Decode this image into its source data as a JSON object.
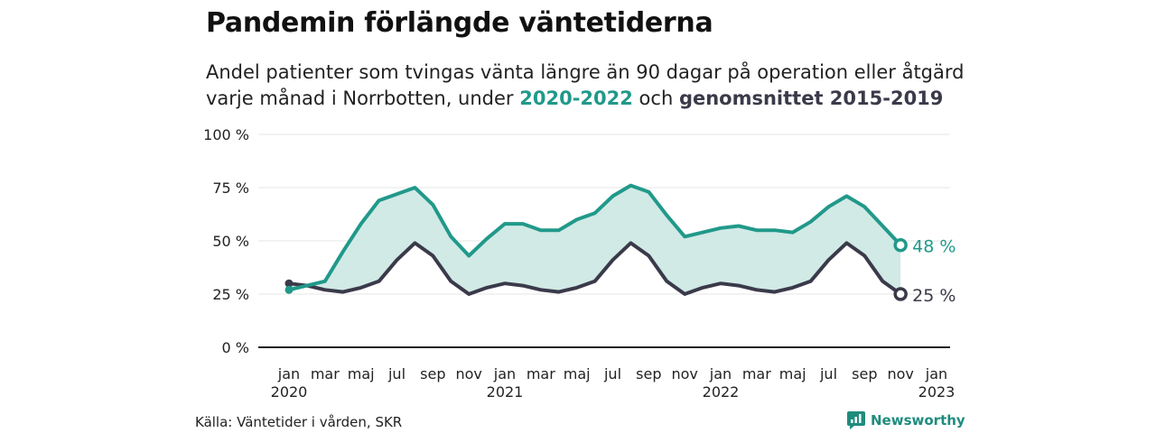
{
  "title": "Pandemin förlängde väntetiderna",
  "subtitle": {
    "line1": "Andel patienter som tvingas vänta längre än 90 dagar på operation eller åtgärd",
    "line2_prefix": "varje månad i Norrbotten, under ",
    "highlight_a": "2020-2022",
    "connector": " och ",
    "highlight_b": "genomsnittet 2015-2019"
  },
  "source": "Källa: Väntetider i vården, SKR",
  "brand": {
    "name": "Newsworthy",
    "icon": "newsworthy-logo-icon"
  },
  "colors": {
    "series_2020_2022": "#21998a",
    "average": "#3a3a4a",
    "fill": "#cfe9e5",
    "grid": "#e6e6e6",
    "axis": "#222222"
  },
  "chart_data": {
    "type": "line",
    "y_axis": {
      "ticks": [
        "0 %",
        "25 %",
        "50 %",
        "75 %",
        "100 %"
      ],
      "ylim": [
        0,
        100
      ],
      "grid": true
    },
    "x_labels": [
      {
        "i": 0,
        "month": "jan",
        "year": "2020"
      },
      {
        "i": 2,
        "month": "mar",
        "year": ""
      },
      {
        "i": 4,
        "month": "maj",
        "year": ""
      },
      {
        "i": 6,
        "month": "jul",
        "year": ""
      },
      {
        "i": 8,
        "month": "sep",
        "year": ""
      },
      {
        "i": 10,
        "month": "nov",
        "year": ""
      },
      {
        "i": 12,
        "month": "jan",
        "year": "2021"
      },
      {
        "i": 14,
        "month": "mar",
        "year": ""
      },
      {
        "i": 16,
        "month": "maj",
        "year": ""
      },
      {
        "i": 18,
        "month": "jul",
        "year": ""
      },
      {
        "i": 20,
        "month": "sep",
        "year": ""
      },
      {
        "i": 22,
        "month": "nov",
        "year": ""
      },
      {
        "i": 24,
        "month": "jan",
        "year": "2022"
      },
      {
        "i": 26,
        "month": "mar",
        "year": ""
      },
      {
        "i": 28,
        "month": "maj",
        "year": ""
      },
      {
        "i": 30,
        "month": "jul",
        "year": ""
      },
      {
        "i": 32,
        "month": "sep",
        "year": ""
      },
      {
        "i": 34,
        "month": "nov",
        "year": ""
      },
      {
        "i": 36,
        "month": "jan",
        "year": "2023"
      }
    ],
    "x_range": [
      -1,
      37
    ],
    "series": [
      {
        "name": "2020-2022",
        "values": [
          27,
          29,
          31,
          45,
          58,
          69,
          72,
          75,
          67,
          52,
          43,
          51,
          58,
          58,
          55,
          55,
          60,
          63,
          71,
          76,
          73,
          62,
          52,
          54,
          56,
          57,
          55,
          55,
          54,
          59,
          66,
          71,
          66,
          57,
          48
        ]
      },
      {
        "name": "genomsnittet 2015-2019",
        "values": [
          30,
          29,
          27,
          26,
          28,
          31,
          41,
          49,
          43,
          31,
          25,
          28,
          30,
          29,
          27,
          26,
          28,
          31,
          41,
          49,
          43,
          31,
          25,
          28,
          30,
          29,
          27,
          26,
          28,
          31,
          41,
          49,
          43,
          31,
          25
        ]
      }
    ],
    "end_labels": [
      "48 %",
      "25 %"
    ]
  }
}
